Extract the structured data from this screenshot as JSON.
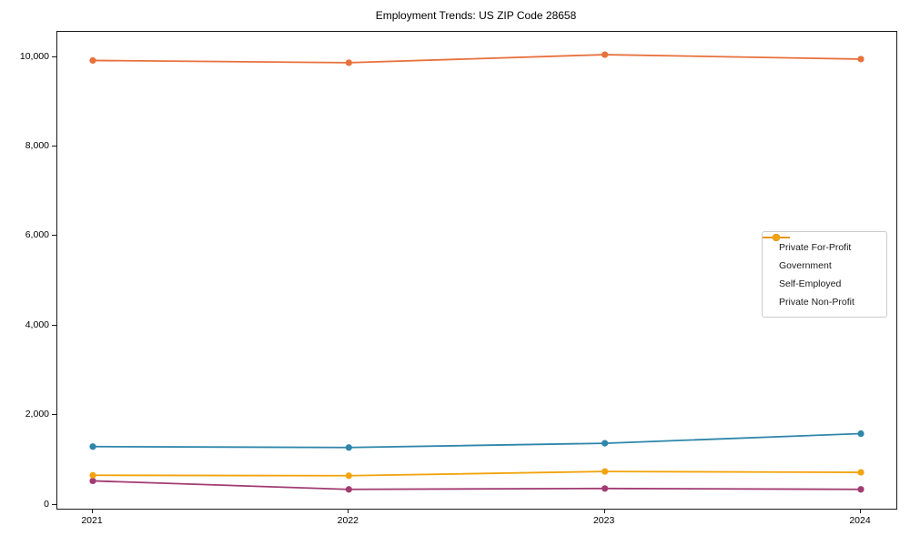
{
  "chart_data": {
    "type": "line",
    "title": "Employment Trends: US ZIP Code 28658",
    "categories": [
      "2021",
      "2022",
      "2023",
      "2024"
    ],
    "series": [
      {
        "name": "Private For-Profit",
        "color": "#e8713c",
        "values": [
          9920,
          9870,
          10050,
          9950
        ]
      },
      {
        "name": "Government",
        "color": "#2e86ab",
        "values": [
          1295,
          1275,
          1370,
          1585
        ]
      },
      {
        "name": "Self-Employed",
        "color": "#a23b72",
        "values": [
          530,
          340,
          360,
          340
        ]
      },
      {
        "name": "Private Non-Profit",
        "color": "#f2a30d",
        "values": [
          655,
          645,
          740,
          720
        ]
      }
    ],
    "xlabel": "",
    "ylabel": "",
    "ylim": [
      0,
      10000
    ],
    "yticks": [
      0,
      2000,
      4000,
      6000,
      8000,
      10000
    ],
    "ytick_labels": [
      "0",
      "2,000",
      "4,000",
      "6,000",
      "8,000",
      "10,000"
    ],
    "grid": false,
    "legend_position": "center-right",
    "marker": "circle"
  }
}
